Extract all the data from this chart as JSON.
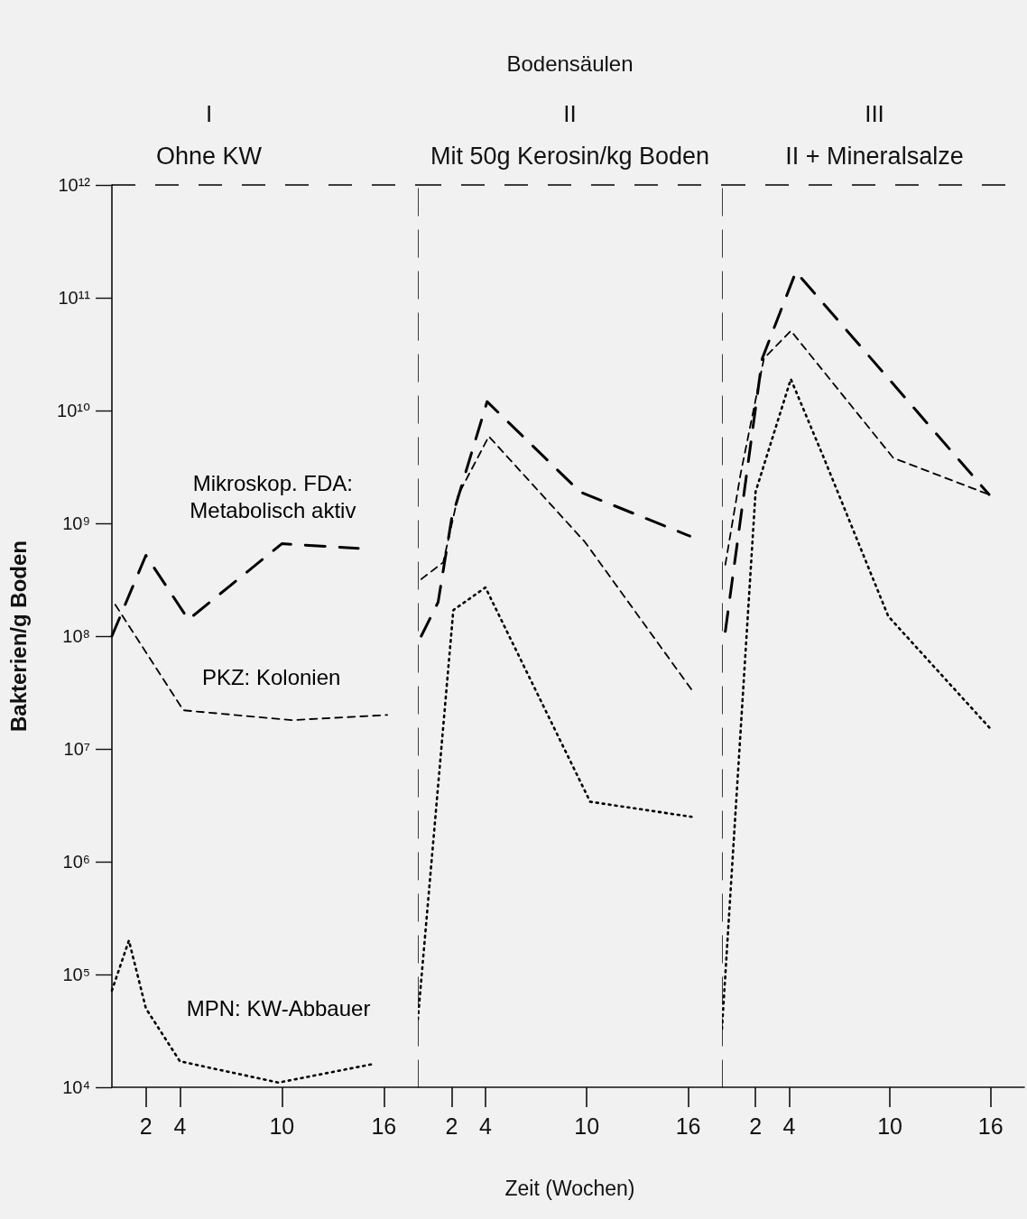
{
  "chart_data": [
    {
      "type": "line",
      "title": "I",
      "subtitle": "Ohne KW",
      "ylabel": "Bakterien/g Boden",
      "log": "y",
      "grid": false,
      "legend": false,
      "marker": "none",
      "xlim": [
        0,
        18
      ],
      "xticks": [
        2,
        4,
        10,
        16
      ],
      "ylim": [
        10000,
        1000000000000
      ],
      "yticks": [
        {
          "value": 10000,
          "label": "10⁴"
        },
        {
          "value": 100000,
          "label": "10⁵"
        },
        {
          "value": 1000000,
          "label": "10⁶"
        },
        {
          "value": 10000000,
          "label": "10⁷"
        },
        {
          "value": 100000000,
          "label": "10⁸"
        },
        {
          "value": 1000000000,
          "label": "10⁹"
        },
        {
          "value": 10000000000,
          "label": "10¹⁰"
        },
        {
          "value": 100000000000,
          "label": "10¹¹"
        },
        {
          "value": 1000000000000,
          "label": "10¹²"
        }
      ],
      "ref_lines": [
        {
          "axis": "y",
          "value": 1000000000000,
          "line_style": "dashed",
          "color": "#000000"
        }
      ],
      "series": [
        {
          "name": "Mikroskop. FDA:\nMetabolisch aktiv",
          "color": "#000000",
          "line_style": "dashed",
          "x": [
            0,
            2,
            4.5,
            10,
            14.5
          ],
          "values": [
            100000000,
            520000000,
            140000000,
            660000000,
            600000000
          ]
        },
        {
          "name": "PKZ: Kolonien",
          "color": "#000000",
          "line_style": "dashed",
          "x": [
            0.2,
            4.2,
            10.6,
            16.2
          ],
          "values": [
            190000000,
            22000000,
            18000000,
            20000000
          ]
        },
        {
          "name": "MPN: KW-Abbauer",
          "color": "#000000",
          "line_style": "dotted",
          "x": [
            0,
            1,
            2,
            4,
            9.8,
            15.3
          ],
          "values": [
            72000,
            200000,
            50000,
            17000,
            11000,
            16000
          ]
        }
      ]
    },
    {
      "type": "line",
      "title": "II",
      "subtitle": "Mit 50g Kerosin/kg Boden",
      "xlabel": "Zeit (Wochen)",
      "annotations": [
        "Bodensäulen"
      ],
      "log": "y",
      "grid": false,
      "legend": false,
      "marker": "none",
      "tick_labels": "x",
      "xlim": [
        0,
        18
      ],
      "xticks": [
        2,
        4,
        10,
        16
      ],
      "ylim": [
        10000,
        1000000000000
      ],
      "ref_lines": [
        {
          "axis": "y",
          "value": 1000000000000,
          "line_style": "dashed",
          "color": "#000000"
        }
      ],
      "series": [
        {
          "color": "#000000",
          "line_style": "dashed",
          "x": [
            0.2,
            1.2,
            2,
            4.1,
            9.6,
            16.1
          ],
          "values": [
            100000000,
            200000000,
            1100000000,
            12000000000,
            1900000000,
            770000000
          ]
        },
        {
          "color": "#000000",
          "line_style": "dashed",
          "x": [
            0.2,
            1.5,
            2.4,
            4.2,
            9.9,
            16.3
          ],
          "values": [
            320000000,
            450000000,
            1800000000,
            5900000000,
            680000000,
            32000000
          ]
        },
        {
          "color": "#000000",
          "line_style": "dotted",
          "x": [
            0,
            2.1,
            4,
            10.2,
            16.2
          ],
          "values": [
            40000,
            170000000,
            270000000,
            3400000,
            2500000
          ]
        }
      ]
    },
    {
      "type": "line",
      "title": "III",
      "subtitle": "II + Mineralsalze",
      "log": "y",
      "grid": false,
      "legend": false,
      "marker": "none",
      "tick_labels": "x",
      "xlim": [
        0,
        18
      ],
      "xticks": [
        2,
        4,
        10,
        16
      ],
      "ylim": [
        10000,
        1000000000000
      ],
      "ref_lines": [
        {
          "axis": "y",
          "value": 1000000000000,
          "line_style": "dashed",
          "color": "#000000"
        }
      ],
      "series": [
        {
          "color": "#000000",
          "line_style": "dashed",
          "x": [
            0.2,
            2.4,
            4.4,
            15.9
          ],
          "values": [
            110000000,
            29000000000,
            170000000000,
            1800000000
          ]
        },
        {
          "color": "#000000",
          "line_style": "dashed",
          "x": [
            0.2,
            1.1,
            2.5,
            4.1,
            10.2,
            15.9
          ],
          "values": [
            430000000,
            2700000000,
            29000000000,
            51000000000,
            3800000000,
            1800000000
          ]
        },
        {
          "color": "#000000",
          "line_style": "dotted",
          "x": [
            0,
            2,
            4.1,
            6.1,
            9.9,
            16
          ],
          "values": [
            33000,
            1900000000,
            19000000000,
            3700000000,
            150000000,
            15000000
          ]
        }
      ]
    }
  ]
}
